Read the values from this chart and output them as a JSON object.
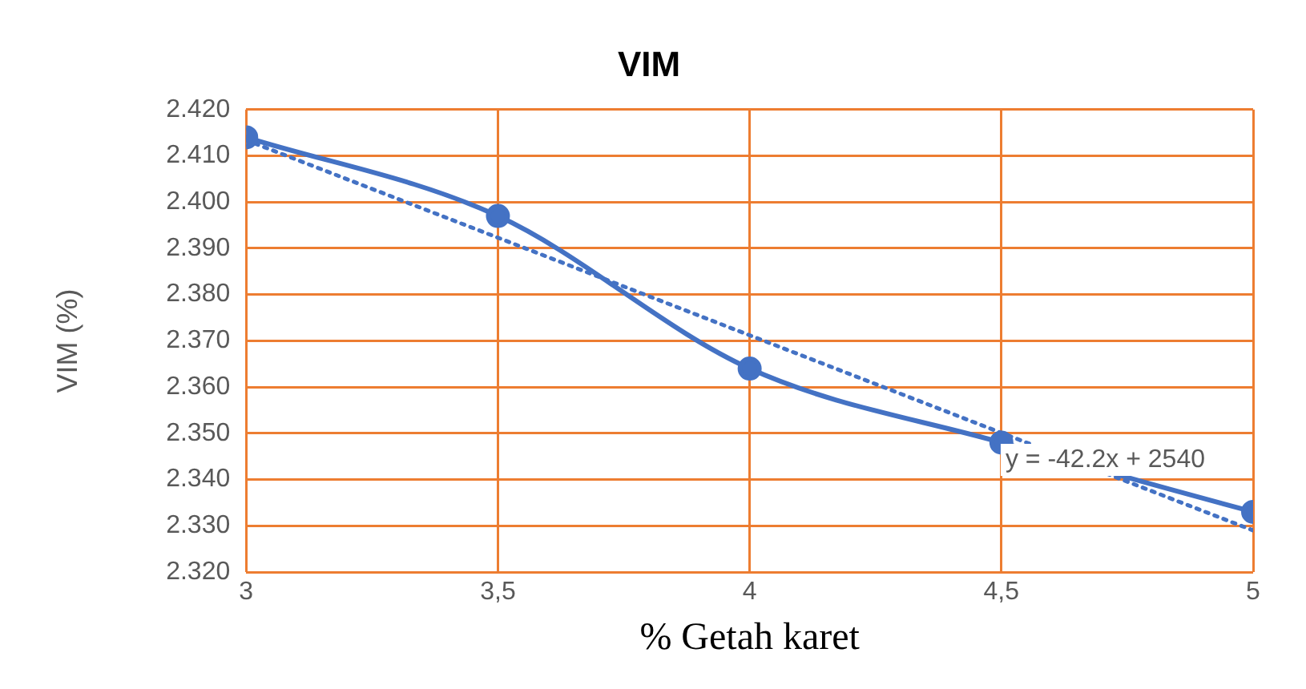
{
  "chart_data": {
    "type": "line",
    "title": "VIM",
    "xlabel": "% Getah karet",
    "ylabel": "VIM (%)",
    "x": [
      3,
      3.5,
      4,
      4.5,
      5
    ],
    "series": [
      {
        "type": "line",
        "color": "#4472c4",
        "values": [
          2414,
          2397,
          2364,
          2348,
          2333
        ],
        "marker": "circle",
        "line_style": "solid"
      },
      {
        "type": "line",
        "color": "#4472c4",
        "x": [
          3,
          5
        ],
        "values": [
          2413.4,
          2329
        ],
        "marker": "none",
        "line_style": "dotted"
      }
    ],
    "xlim": [
      3,
      5
    ],
    "xticks": [
      3,
      {
        "value": 3.5,
        "label": "3,5"
      },
      4,
      {
        "value": 4.5,
        "label": "4,5"
      },
      5
    ],
    "ylim": [
      2320,
      2420
    ],
    "yticks": [
      {
        "value": 2320,
        "label": "2.320"
      },
      {
        "value": 2330,
        "label": "2.330"
      },
      {
        "value": 2340,
        "label": "2.340"
      },
      {
        "value": 2350,
        "label": "2.350"
      },
      {
        "value": 2360,
        "label": "2.360"
      },
      {
        "value": 2370,
        "label": "2.370"
      },
      {
        "value": 2380,
        "label": "2.380"
      },
      {
        "value": 2390,
        "label": "2.390"
      },
      {
        "value": 2400,
        "label": "2.400"
      },
      {
        "value": 2410,
        "label": "2.410"
      },
      {
        "value": 2420,
        "label": "2.420"
      }
    ],
    "grid": true,
    "legend": false,
    "annotations": [
      "y = -42.2x + 2540"
    ]
  }
}
